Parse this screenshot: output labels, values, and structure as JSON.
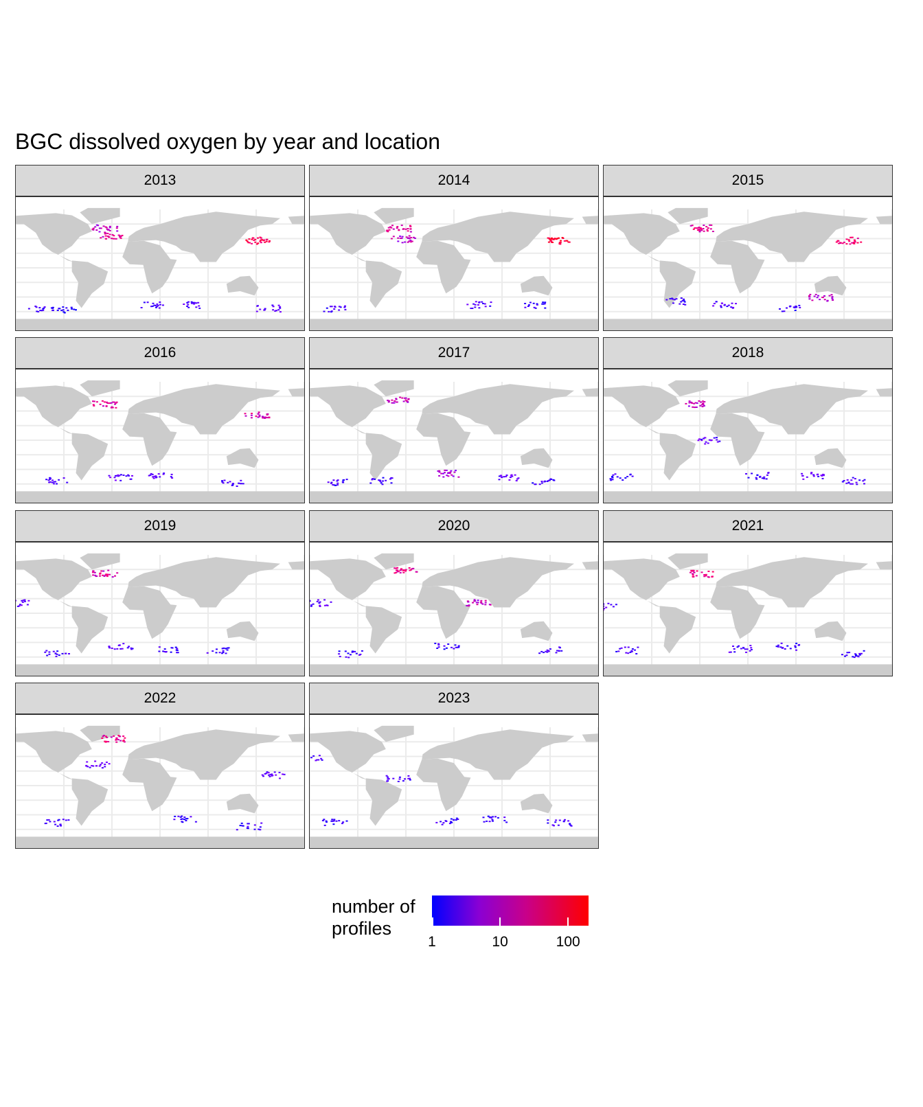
{
  "title": "BGC dissolved oxygen by year and location",
  "colors": {
    "land": "#cccccc",
    "grid": "#ebebeb",
    "strip": "#d9d9d9",
    "low": "#0000ff",
    "mid": "#b000b0",
    "high": "#ff0000"
  },
  "chart_data": {
    "type": "heatmap",
    "facet_by": "year",
    "panels": [
      {
        "year": "2013",
        "tracks": [
          {
            "lon": -120,
            "lat": -55,
            "count": 3
          },
          {
            "lon": -90,
            "lat": -57,
            "count": 2
          },
          {
            "lon": 150,
            "lat": 38,
            "count": 80
          },
          {
            "lon": -40,
            "lat": 55,
            "count": 20
          },
          {
            "lon": 70,
            "lat": -50,
            "count": 4
          },
          {
            "lon": 20,
            "lat": -50,
            "count": 3
          },
          {
            "lon": -30,
            "lat": 45,
            "count": 30
          },
          {
            "lon": 165,
            "lat": -55,
            "count": 4
          }
        ]
      },
      {
        "year": "2014",
        "tracks": [
          {
            "lon": 160,
            "lat": 38,
            "count": 120
          },
          {
            "lon": -40,
            "lat": 55,
            "count": 30
          },
          {
            "lon": -120,
            "lat": -55,
            "count": 3
          },
          {
            "lon": 60,
            "lat": -50,
            "count": 4
          },
          {
            "lon": -35,
            "lat": 40,
            "count": 20
          },
          {
            "lon": 130,
            "lat": -50,
            "count": 3
          }
        ]
      },
      {
        "year": "2015",
        "tracks": [
          {
            "lon": 155,
            "lat": 38,
            "count": 50
          },
          {
            "lon": -30,
            "lat": 55,
            "count": 40
          },
          {
            "lon": -60,
            "lat": -45,
            "count": 3
          },
          {
            "lon": 80,
            "lat": -55,
            "count": 3
          },
          {
            "lon": 120,
            "lat": -40,
            "count": 20
          },
          {
            "lon": 0,
            "lat": -50,
            "count": 4
          }
        ]
      },
      {
        "year": "2016",
        "tracks": [
          {
            "lon": 150,
            "lat": 35,
            "count": 30
          },
          {
            "lon": -40,
            "lat": 50,
            "count": 30
          },
          {
            "lon": 120,
            "lat": -58,
            "count": 3
          },
          {
            "lon": 30,
            "lat": -48,
            "count": 4
          },
          {
            "lon": -100,
            "lat": -55,
            "count": 3
          },
          {
            "lon": -20,
            "lat": -50,
            "count": 5
          }
        ]
      },
      {
        "year": "2017",
        "tracks": [
          {
            "lon": -40,
            "lat": 55,
            "count": 20
          },
          {
            "lon": 100,
            "lat": -50,
            "count": 5
          },
          {
            "lon": -120,
            "lat": -57,
            "count": 3
          },
          {
            "lon": 20,
            "lat": -45,
            "count": 15
          },
          {
            "lon": -60,
            "lat": -55,
            "count": 3
          },
          {
            "lon": 140,
            "lat": -55,
            "count": 3
          }
        ]
      },
      {
        "year": "2018",
        "tracks": [
          {
            "lon": -40,
            "lat": 50,
            "count": 20
          },
          {
            "lon": 110,
            "lat": -48,
            "count": 5
          },
          {
            "lon": -130,
            "lat": -50,
            "count": 3
          },
          {
            "lon": 40,
            "lat": -48,
            "count": 3
          },
          {
            "lon": -20,
            "lat": 0,
            "count": 5
          },
          {
            "lon": 160,
            "lat": -55,
            "count": 4
          }
        ]
      },
      {
        "year": "2019",
        "tracks": [
          {
            "lon": -40,
            "lat": 55,
            "count": 30
          },
          {
            "lon": -150,
            "lat": 15,
            "count": 5
          },
          {
            "lon": 100,
            "lat": -50,
            "count": 3
          },
          {
            "lon": -20,
            "lat": -45,
            "count": 4
          },
          {
            "lon": 40,
            "lat": -50,
            "count": 3
          },
          {
            "lon": -100,
            "lat": -55,
            "count": 3
          }
        ]
      },
      {
        "year": "2020",
        "tracks": [
          {
            "lon": -30,
            "lat": 60,
            "count": 40
          },
          {
            "lon": -140,
            "lat": 15,
            "count": 5
          },
          {
            "lon": 60,
            "lat": 15,
            "count": 20
          },
          {
            "lon": 150,
            "lat": -50,
            "count": 3
          },
          {
            "lon": -100,
            "lat": -55,
            "count": 3
          },
          {
            "lon": 20,
            "lat": -45,
            "count": 3
          }
        ]
      },
      {
        "year": "2021",
        "tracks": [
          {
            "lon": -30,
            "lat": 55,
            "count": 40
          },
          {
            "lon": -150,
            "lat": 10,
            "count": 5
          },
          {
            "lon": 80,
            "lat": -45,
            "count": 3
          },
          {
            "lon": -120,
            "lat": -50,
            "count": 3
          },
          {
            "lon": 20,
            "lat": -48,
            "count": 4
          },
          {
            "lon": 160,
            "lat": -55,
            "count": 3
          }
        ]
      },
      {
        "year": "2022",
        "tracks": [
          {
            "lon": -30,
            "lat": 65,
            "count": 40
          },
          {
            "lon": 170,
            "lat": 15,
            "count": 5
          },
          {
            "lon": 60,
            "lat": -45,
            "count": 3
          },
          {
            "lon": -100,
            "lat": -50,
            "count": 3
          },
          {
            "lon": 140,
            "lat": -55,
            "count": 3
          },
          {
            "lon": -50,
            "lat": 30,
            "count": 5
          }
        ]
      },
      {
        "year": "2023",
        "tracks": [
          {
            "lon": -150,
            "lat": 40,
            "count": 4
          },
          {
            "lon": 80,
            "lat": -45,
            "count": 3
          },
          {
            "lon": -120,
            "lat": -50,
            "count": 3
          },
          {
            "lon": -40,
            "lat": 10,
            "count": 4
          },
          {
            "lon": 160,
            "lat": -50,
            "count": 3
          },
          {
            "lon": 20,
            "lat": -48,
            "count": 3
          }
        ]
      }
    ],
    "color_scale": {
      "name": "number of\nprofiles",
      "type": "log10",
      "range": [
        1,
        200
      ],
      "ticks": [
        {
          "value": 1,
          "label": "1"
        },
        {
          "value": 10,
          "label": "10"
        },
        {
          "value": 100,
          "label": "100"
        }
      ]
    }
  },
  "legend": {
    "title_line1": "number of",
    "title_line2": "profiles"
  }
}
